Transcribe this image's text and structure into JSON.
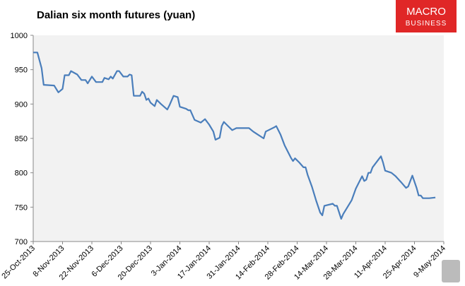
{
  "brand": {
    "line1": "MACRO",
    "line2": "BUSINESS"
  },
  "chart_data": {
    "type": "line",
    "title": "Dalian six month futures (yuan)",
    "x": [
      "25-Oct-2013",
      "27-Oct-2013",
      "29-Oct-2013",
      "30-Oct-2013",
      "4-Nov-2013",
      "6-Nov-2013",
      "8-Nov-2013",
      "9-Nov-2013",
      "11-Nov-2013",
      "12-Nov-2013",
      "15-Nov-2013",
      "17-Nov-2013",
      "19-Nov-2013",
      "20-Nov-2013",
      "22-Nov-2013",
      "24-Nov-2013",
      "27-Nov-2013",
      "28-Nov-2013",
      "30-Nov-2013",
      "1-Dec-2013",
      "2-Dec-2013",
      "4-Dec-2013",
      "5-Dec-2013",
      "7-Dec-2013",
      "9-Dec-2013",
      "10-Dec-2013",
      "11-Dec-2013",
      "12-Dec-2013",
      "15-Dec-2013",
      "16-Dec-2013",
      "17-Dec-2013",
      "18-Dec-2013",
      "19-Dec-2013",
      "20-Dec-2013",
      "22-Dec-2013",
      "23-Dec-2013",
      "25-Dec-2013",
      "28-Dec-2013",
      "29-Dec-2013",
      "31-Dec-2013",
      "2-Jan-2014",
      "3-Jan-2014",
      "6-Jan-2014",
      "7-Jan-2014",
      "8-Jan-2014",
      "10-Jan-2014",
      "13-Jan-2014",
      "15-Jan-2014",
      "17-Jan-2014",
      "19-Jan-2014",
      "20-Jan-2014",
      "22-Jan-2014",
      "23-Jan-2014",
      "24-Jan-2014",
      "26-Jan-2014",
      "28-Jan-2014",
      "30-Jan-2014",
      "5-Feb-2014",
      "7-Feb-2014",
      "9-Feb-2014",
      "12-Feb-2014",
      "13-Feb-2014",
      "17-Feb-2014",
      "18-Feb-2014",
      "20-Feb-2014",
      "22-Feb-2014",
      "25-Feb-2014",
      "26-Feb-2014",
      "27-Feb-2014",
      "1-Mar-2014",
      "3-Mar-2014",
      "4-Mar-2014",
      "5-Mar-2014",
      "7-Mar-2014",
      "9-Mar-2014",
      "11-Mar-2014",
      "12-Mar-2014",
      "13-Mar-2014",
      "17-Mar-2014",
      "18-Mar-2014",
      "19-Mar-2014",
      "21-Mar-2014",
      "22-Mar-2014",
      "26-Mar-2014",
      "28-Mar-2014",
      "31-Mar-2014",
      "1-Apr-2014",
      "2-Apr-2014",
      "3-Apr-2014",
      "4-Apr-2014",
      "5-Apr-2014",
      "8-Apr-2014",
      "9-Apr-2014",
      "10-Apr-2014",
      "11-Apr-2014",
      "14-Apr-2014",
      "16-Apr-2014",
      "19-Apr-2014",
      "21-Apr-2014",
      "22-Apr-2014",
      "24-Apr-2014",
      "26-Apr-2014",
      "27-Apr-2014",
      "28-Apr-2014",
      "29-Apr-2014",
      "2-May-2014",
      "5-May-2014"
    ],
    "series": [
      {
        "name": "Dalian six month futures",
        "color": "#4a7ebb",
        "values": [
          975,
          975,
          952,
          928,
          927,
          917,
          922,
          942,
          942,
          948,
          943,
          935,
          935,
          930,
          940,
          932,
          932,
          938,
          936,
          940,
          937,
          948,
          948,
          940,
          940,
          943,
          942,
          912,
          912,
          918,
          915,
          906,
          908,
          902,
          897,
          906,
          900,
          892,
          898,
          912,
          910,
          896,
          893,
          891,
          891,
          877,
          873,
          878,
          870,
          860,
          848,
          851,
          868,
          874,
          868,
          862,
          865,
          865,
          860,
          856,
          850,
          860,
          866,
          868,
          856,
          840,
          822,
          817,
          821,
          815,
          808,
          808,
          797,
          780,
          760,
          742,
          738,
          752,
          755,
          752,
          752,
          733,
          740,
          760,
          777,
          795,
          788,
          790,
          800,
          800,
          808,
          820,
          824,
          815,
          803,
          800,
          795,
          785,
          778,
          780,
          796,
          778,
          767,
          767,
          763,
          763,
          764
        ]
      }
    ],
    "xlim": [
      "25-Oct-2013",
      "9-May-2014"
    ],
    "xticks": [
      "25-Oct-2013",
      "8-Nov-2013",
      "22-Nov-2013",
      "6-Dec-2013",
      "20-Dec-2013",
      "3-Jan-2014",
      "17-Jan-2014",
      "31-Jan-2014",
      "14-Feb-2014",
      "28-Feb-2014",
      "14-Mar-2014",
      "28-Mar-2014",
      "11-Apr-2014",
      "25-Apr-2014",
      "9-May-2014"
    ],
    "ylim": [
      700,
      1000
    ],
    "yticks": [
      700,
      750,
      800,
      850,
      900,
      950,
      1000
    ],
    "grid": false
  }
}
